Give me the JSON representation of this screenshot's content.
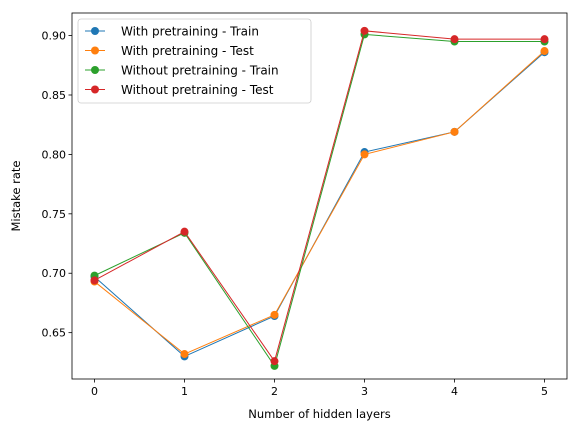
{
  "chart_data": {
    "type": "line",
    "xlabel": "Number of hidden layers",
    "ylabel": "Mistake rate",
    "x": [
      0,
      1,
      2,
      3,
      4,
      5
    ],
    "xlim": [
      -0.25,
      5.25
    ],
    "ylim": [
      0.611,
      0.919
    ],
    "xticks": [
      0,
      1,
      2,
      3,
      4,
      5
    ],
    "yticks": [
      0.65,
      0.7,
      0.75,
      0.8,
      0.85,
      0.9
    ],
    "ytick_labels": [
      "0.65",
      "0.70",
      "0.75",
      "0.80",
      "0.85",
      "0.90"
    ],
    "grid": false,
    "legend_position": "top-left",
    "series": [
      {
        "name": "With pretraining - Train",
        "color": "#1f77b4",
        "values": [
          0.697,
          0.63,
          0.664,
          0.802,
          0.819,
          0.886
        ]
      },
      {
        "name": "With pretraining - Test",
        "color": "#ff7f0e",
        "values": [
          0.693,
          0.632,
          0.665,
          0.8,
          0.819,
          0.887
        ]
      },
      {
        "name": "Without pretraining - Train",
        "color": "#2ca02c",
        "values": [
          0.698,
          0.734,
          0.622,
          0.901,
          0.895,
          0.895
        ]
      },
      {
        "name": "Without pretraining - Test",
        "color": "#d62728",
        "values": [
          0.694,
          0.735,
          0.626,
          0.904,
          0.897,
          0.897
        ]
      }
    ]
  }
}
